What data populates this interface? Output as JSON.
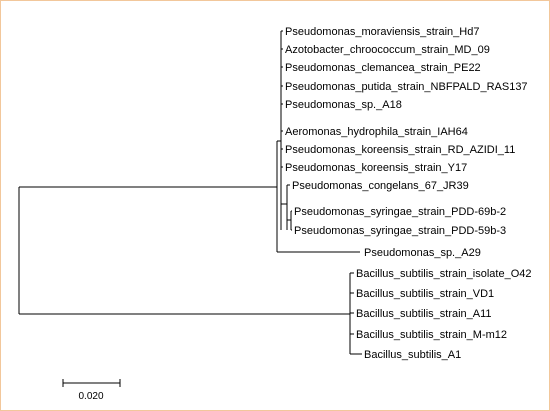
{
  "tree": {
    "leaves": [
      "Pseudomonas_moraviensis_strain_Hd7",
      "Azotobacter_chroococcum_strain_MD_09",
      "Pseudomonas_clemancea_strain_PE22",
      "Pseudomonas_putida_strain_NBFPALD_RAS137",
      "Pseudomonas_sp._A18",
      "Aeromonas_hydrophila_strain_IAH64",
      "Pseudomonas_koreensis_strain_RD_AZIDI_11",
      "Pseudomonas_koreensis_strain_Y17",
      "Pseudomonas_congelans_67_JR39",
      "Pseudomonas_syringae_strain_PDD-69b-2",
      "Pseudomonas_syringae_strain_PDD-59b-3",
      "Pseudomonas_sp._A29",
      "Bacillus_subtilis_strain_isolate_O42",
      "Bacillus_subtilis_strain_VD1",
      "Bacillus_subtilis_strain_A11",
      "Bacillus_subtilis_strain_M-m12",
      "Bacillus_subtilis_A1"
    ],
    "scale_bar": {
      "label": "0.020",
      "value": 0.02
    },
    "colors": {
      "branch": "#000000",
      "frame_border": "#f2c79b"
    }
  }
}
